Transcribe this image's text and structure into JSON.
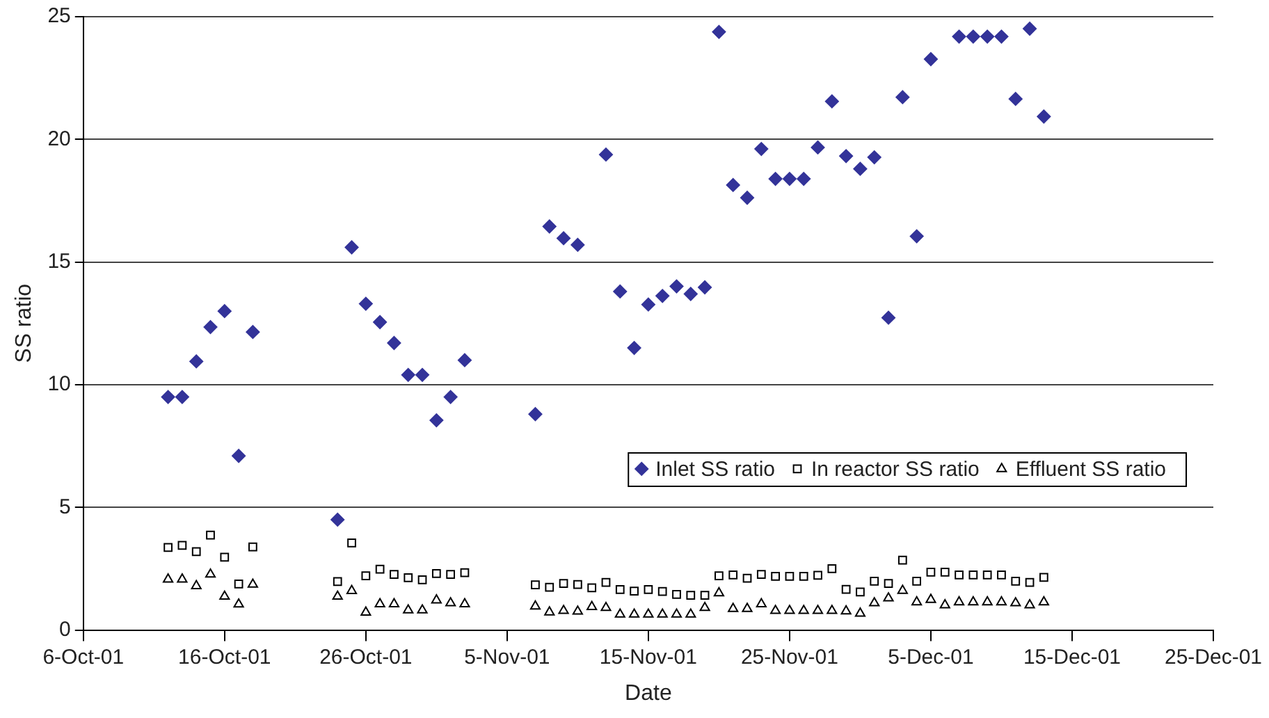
{
  "chart_data": {
    "type": "scatter",
    "xlabel": "Date",
    "ylabel": "SS ratio",
    "xlim": [
      "--10-06",
      "--12-25"
    ],
    "xticks": [
      {
        "value": "--10-06",
        "label": "6-Oct-01"
      },
      {
        "value": "--10-16",
        "label": "16-Oct-01"
      },
      {
        "value": "--10-26",
        "label": "26-Oct-01"
      },
      {
        "value": "--11-05",
        "label": "5-Nov-01"
      },
      {
        "value": "--11-15",
        "label": "15-Nov-01"
      },
      {
        "value": "--11-25",
        "label": "25-Nov-01"
      },
      {
        "value": "--12-05",
        "label": "5-Dec-01"
      },
      {
        "value": "--12-15",
        "label": "15-Dec-01"
      },
      {
        "value": "--12-25",
        "label": "25-Dec-01"
      }
    ],
    "ylim": [
      0,
      25
    ],
    "yticks": [
      0,
      5,
      10,
      15,
      20,
      25
    ],
    "grid": "y",
    "legend": "right",
    "series": [
      {
        "name": "Inlet SS ratio",
        "color": "#333399",
        "marker": "diamond",
        "x": [
          "--10-12",
          "--10-13",
          "--10-14",
          "--10-15",
          "--10-16",
          "--10-17",
          "--10-18",
          "--10-24",
          "--10-25",
          "--10-26",
          "--10-27",
          "--10-28",
          "--10-29",
          "--10-30",
          "--10-31",
          "--11-01",
          "--11-02",
          "--11-07",
          "--11-08",
          "--11-09",
          "--11-10",
          "--11-12",
          "--11-13",
          "--11-14",
          "--11-15",
          "--11-16",
          "--11-17",
          "--11-18",
          "--11-19",
          "--11-20",
          "--11-21",
          "--11-22",
          "--11-23",
          "--11-24",
          "--11-25",
          "--11-26",
          "--11-27",
          "--11-28",
          "--11-29",
          "--11-30",
          "--12-01",
          "--12-02",
          "--12-03",
          "--12-04",
          "--12-05",
          "--12-07",
          "--12-08",
          "--12-09",
          "--12-10",
          "--12-11",
          "--12-12",
          "--12-13"
        ],
        "values": [
          9.5,
          9.5,
          10.95,
          12.35,
          13.0,
          7.1,
          12.15,
          4.5,
          15.6,
          13.3,
          12.55,
          11.7,
          10.4,
          10.4,
          8.55,
          9.5,
          11.0,
          8.8,
          16.45,
          15.97,
          15.7,
          19.38,
          13.8,
          11.5,
          13.27,
          13.62,
          14.01,
          13.7,
          13.97,
          24.38,
          18.14,
          17.62,
          19.61,
          18.39,
          18.39,
          18.39,
          19.67,
          21.55,
          19.32,
          18.8,
          19.27,
          12.73,
          21.72,
          16.05,
          23.27,
          24.19,
          24.19,
          24.19,
          24.19,
          21.65,
          24.51,
          20.93
        ]
      },
      {
        "name": "In reactor SS ratio",
        "color": "#000000",
        "marker": "square",
        "x": [
          "--10-12",
          "--10-13",
          "--10-14",
          "--10-15",
          "--10-16",
          "--10-17",
          "--10-18",
          "--10-24",
          "--10-25",
          "--10-26",
          "--10-27",
          "--10-28",
          "--10-29",
          "--10-30",
          "--10-31",
          "--11-01",
          "--11-02",
          "--11-07",
          "--11-08",
          "--11-09",
          "--11-10",
          "--11-11",
          "--11-12",
          "--11-13",
          "--11-14",
          "--11-15",
          "--11-16",
          "--11-17",
          "--11-18",
          "--11-19",
          "--11-20",
          "--11-21",
          "--11-22",
          "--11-23",
          "--11-24",
          "--11-25",
          "--11-26",
          "--11-27",
          "--11-28",
          "--11-29",
          "--11-30",
          "--12-01",
          "--12-02",
          "--12-03",
          "--12-04",
          "--12-05",
          "--12-06",
          "--12-07",
          "--12-08",
          "--12-09",
          "--12-10",
          "--12-11",
          "--12-12",
          "--12-13"
        ],
        "values": [
          3.37,
          3.45,
          3.2,
          3.87,
          2.97,
          1.88,
          3.39,
          1.98,
          3.55,
          2.21,
          2.48,
          2.27,
          2.13,
          2.05,
          2.3,
          2.27,
          2.34,
          1.84,
          1.74,
          1.9,
          1.86,
          1.72,
          1.94,
          1.65,
          1.59,
          1.65,
          1.57,
          1.45,
          1.42,
          1.42,
          2.21,
          2.25,
          2.11,
          2.27,
          2.19,
          2.19,
          2.19,
          2.23,
          2.5,
          1.66,
          1.55,
          1.99,
          1.9,
          2.85,
          1.99,
          2.36,
          2.36,
          2.25,
          2.25,
          2.25,
          2.25,
          1.99,
          1.94,
          2.15
        ]
      },
      {
        "name": "Effluent SS ratio",
        "color": "#000000",
        "marker": "triangle",
        "x": [
          "--10-12",
          "--10-13",
          "--10-14",
          "--10-15",
          "--10-16",
          "--10-17",
          "--10-18",
          "--10-24",
          "--10-25",
          "--10-26",
          "--10-27",
          "--10-28",
          "--10-29",
          "--10-30",
          "--10-31",
          "--11-01",
          "--11-02",
          "--11-07",
          "--11-08",
          "--11-09",
          "--11-10",
          "--11-11",
          "--11-12",
          "--11-13",
          "--11-14",
          "--11-15",
          "--11-16",
          "--11-17",
          "--11-18",
          "--11-19",
          "--11-20",
          "--11-21",
          "--11-22",
          "--11-23",
          "--11-24",
          "--11-25",
          "--11-26",
          "--11-27",
          "--11-28",
          "--11-29",
          "--11-30",
          "--12-01",
          "--12-02",
          "--12-03",
          "--12-04",
          "--12-05",
          "--12-06",
          "--12-07",
          "--12-08",
          "--12-09",
          "--12-10",
          "--12-11",
          "--12-12",
          "--12-13"
        ],
        "values": [
          2.07,
          2.07,
          1.8,
          2.27,
          1.37,
          1.05,
          1.86,
          1.37,
          1.6,
          0.72,
          1.06,
          1.06,
          0.81,
          0.81,
          1.22,
          1.1,
          1.06,
          0.97,
          0.73,
          0.79,
          0.76,
          0.95,
          0.91,
          0.64,
          0.64,
          0.64,
          0.64,
          0.64,
          0.64,
          0.91,
          1.51,
          0.87,
          0.87,
          1.06,
          0.79,
          0.79,
          0.79,
          0.79,
          0.79,
          0.77,
          0.68,
          1.1,
          1.3,
          1.61,
          1.14,
          1.24,
          1.02,
          1.14,
          1.14,
          1.14,
          1.14,
          1.1,
          1.02,
          1.14
        ]
      }
    ]
  }
}
